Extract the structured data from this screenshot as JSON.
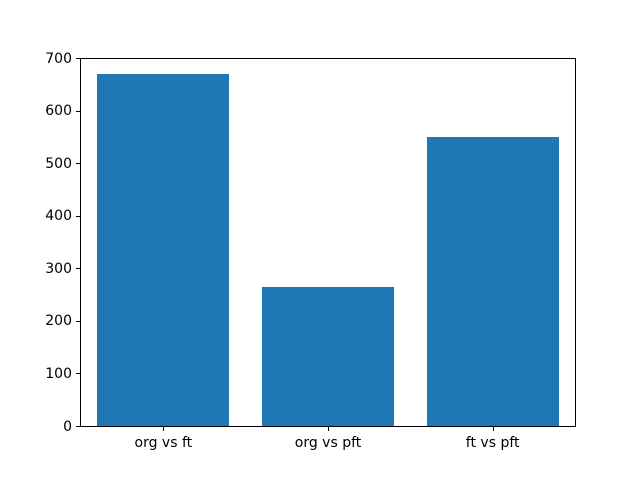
{
  "chart_data": {
    "type": "bar",
    "title": "",
    "xlabel": "",
    "ylabel": "",
    "categories": [
      "org vs ft",
      "org vs pft",
      "ft vs pft"
    ],
    "values": [
      670,
      264,
      550
    ],
    "ylim": [
      0,
      700
    ],
    "yticks": [
      0,
      100,
      200,
      300,
      400,
      500,
      600,
      700
    ],
    "bar_color": "#1f77b4",
    "bar_width_fraction": 0.8,
    "grid": false,
    "legend": null,
    "background_color": "#ffffff",
    "axis_color": "#000000"
  }
}
